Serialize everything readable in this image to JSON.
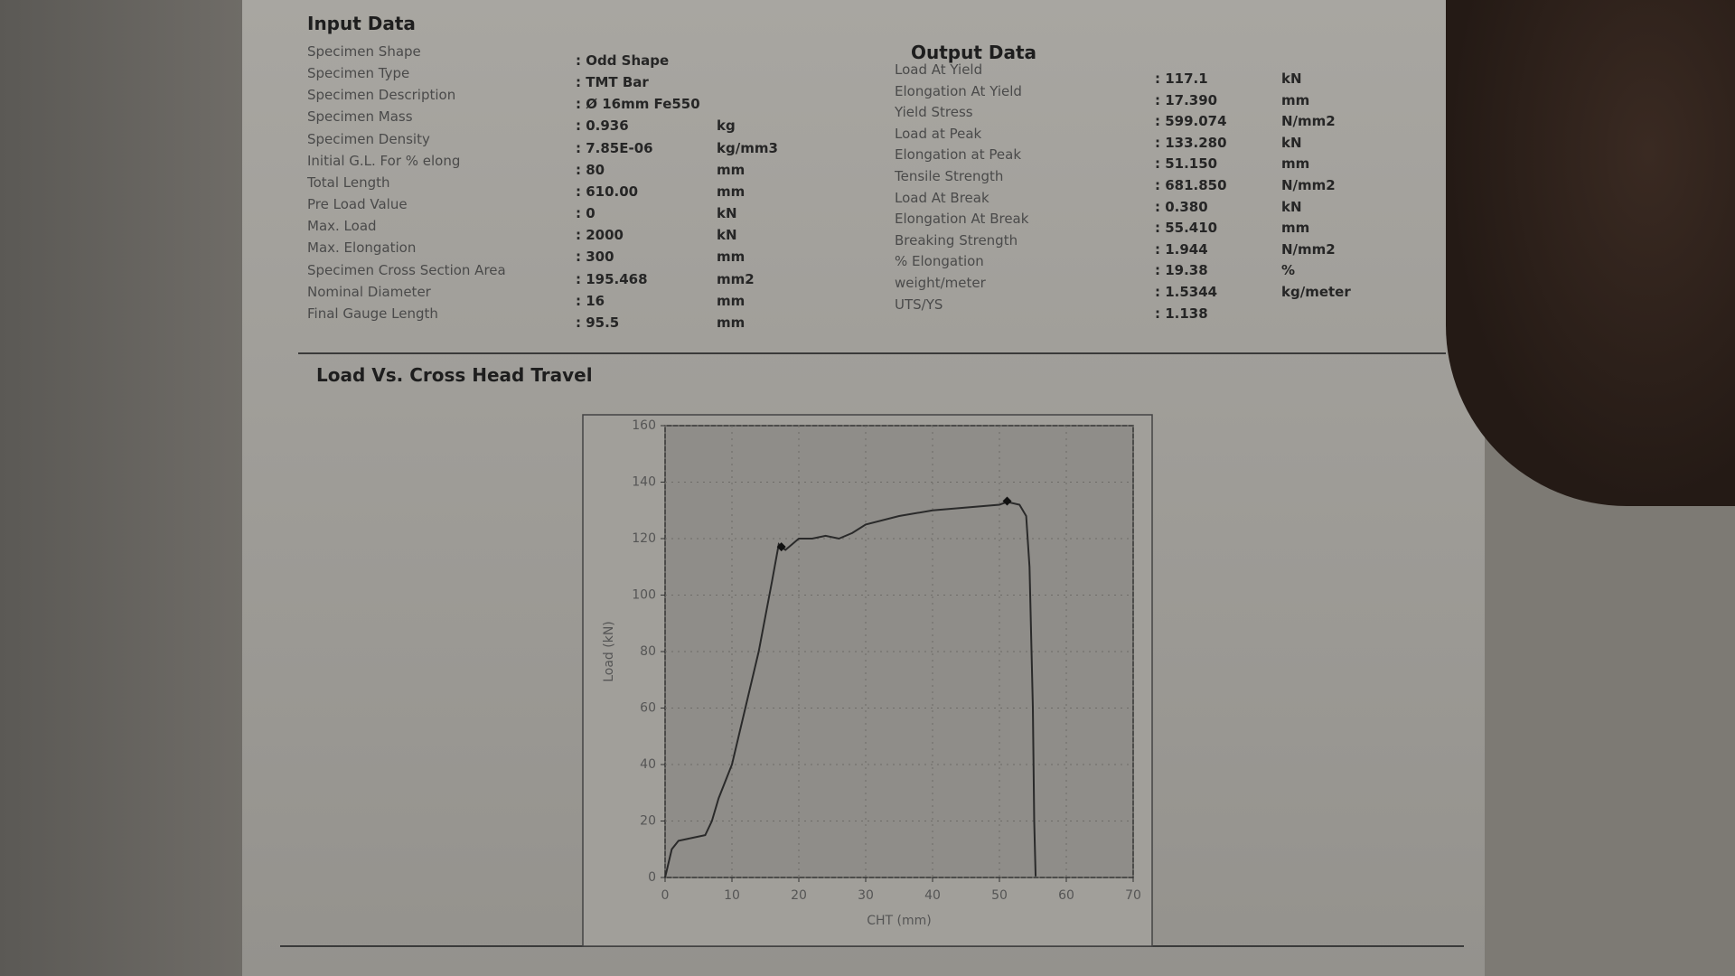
{
  "input_data": {
    "title": "Input Data",
    "rows": [
      {
        "label": "Specimen Shape",
        "value": ": Odd Shape"
      },
      {
        "label": "Specimen Type",
        "value": ": TMT Bar"
      },
      {
        "label": "Specimen Description",
        "value": ": Ø 16mm Fe550"
      },
      {
        "label": "Specimen Mass",
        "value": ": 0.936",
        "unit": "kg"
      },
      {
        "label": "Specimen Density",
        "value": ": 7.85E-06",
        "unit": "kg/mm3"
      },
      {
        "label": "Initial G.L. For % elong",
        "value": ": 80",
        "unit": "mm"
      },
      {
        "label": "Total Length",
        "value": ": 610.00",
        "unit": "mm"
      },
      {
        "label": "Pre Load Value",
        "value": ": 0",
        "unit": "kN"
      },
      {
        "label": "Max. Load",
        "value": ": 2000",
        "unit": "kN"
      },
      {
        "label": "Max. Elongation",
        "value": ": 300",
        "unit": "mm"
      },
      {
        "label": "Specimen Cross Section Area",
        "value": ": 195.468",
        "unit": "mm2"
      },
      {
        "label": "Nominal Diameter",
        "value": ": 16",
        "unit": "mm"
      },
      {
        "label": "Final Gauge Length",
        "value": ": 95.5",
        "unit": "mm"
      }
    ]
  },
  "output_data": {
    "title": "Output Data",
    "rows": [
      {
        "label": "Load At Yield",
        "value": ": 117.1",
        "unit": "kN"
      },
      {
        "label": "Elongation At Yield",
        "value": ": 17.390",
        "unit": "mm"
      },
      {
        "label": "Yield Stress",
        "value": ": 599.074",
        "unit": "N/mm2"
      },
      {
        "label": "Load at Peak",
        "value": ": 133.280",
        "unit": "kN"
      },
      {
        "label": "Elongation at Peak",
        "value": ": 51.150",
        "unit": "mm"
      },
      {
        "label": "Tensile Strength",
        "value": ": 681.850",
        "unit": "N/mm2"
      },
      {
        "label": "Load At Break",
        "value": ": 0.380",
        "unit": "kN"
      },
      {
        "label": "Elongation At Break",
        "value": ": 55.410",
        "unit": "mm"
      },
      {
        "label": "Breaking Strength",
        "value": ": 1.944",
        "unit": "N/mm2"
      },
      {
        "label": "% Elongation",
        "value": ": 19.38",
        "unit": "%"
      },
      {
        "label": "weight/meter",
        "value": ": 1.5344",
        "unit": "kg/meter"
      },
      {
        "label": "UTS/YS",
        "value": ": 1.138"
      }
    ]
  },
  "chart_data": {
    "type": "line",
    "title": "Load Vs. Cross Head Travel",
    "x_label": "CHT (mm)",
    "y_label": "Load (kN)",
    "x": [
      0,
      0.5,
      1,
      2,
      4,
      6,
      7,
      8,
      10,
      12,
      14,
      16,
      17,
      17.4,
      18,
      19,
      20,
      22,
      24,
      26,
      28,
      30,
      35,
      40,
      45,
      50,
      51.15,
      53,
      54,
      54.5,
      55,
      55.2,
      55.41
    ],
    "series": [
      {
        "color": "#2a2a2a",
        "values": [
          0,
          5,
          10,
          13,
          14,
          15,
          20,
          28,
          40,
          60,
          80,
          105,
          118,
          117,
          116,
          118,
          120,
          120,
          121,
          120,
          122,
          125,
          128,
          130,
          131,
          132,
          133,
          132,
          128,
          110,
          60,
          20,
          0.4
        ]
      }
    ],
    "markers": {
      "x": [
        17.39,
        51.15
      ],
      "y": [
        117.1,
        133.28
      ],
      "color": "#111"
    },
    "xlim": [
      0,
      70
    ],
    "xticks": [
      0,
      10,
      20,
      30,
      40,
      50,
      60,
      70
    ],
    "ylim": [
      0,
      160
    ],
    "yticks": [
      0,
      20,
      40,
      60,
      80,
      100,
      120,
      140,
      160
    ],
    "grid": true
  }
}
